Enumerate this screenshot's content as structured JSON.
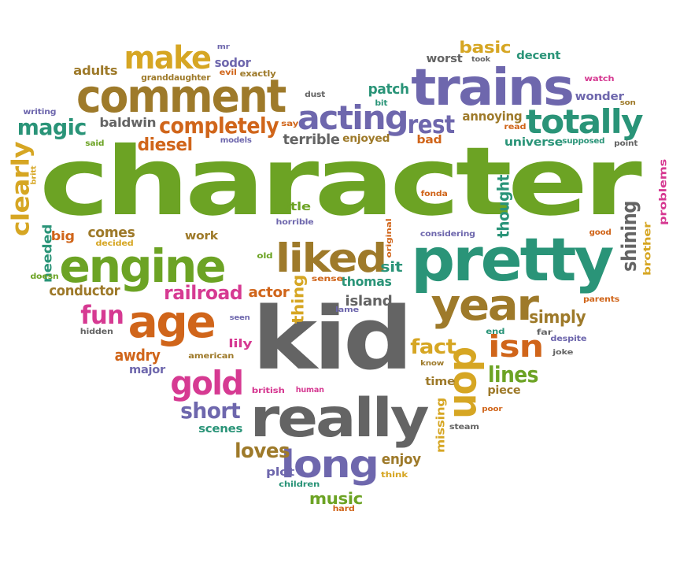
{
  "cloud": {
    "palette": {
      "green": "#6ca324",
      "teal": "#2a9478",
      "purple": "#6e67ad",
      "brown": "#9e7a2a",
      "orange": "#d0651a",
      "magenta": "#d63a92",
      "gold": "#d6a623",
      "gray": "#646464"
    },
    "words": [
      {
        "id": "character",
        "text": "character",
        "color": "green"
      },
      {
        "id": "kid",
        "text": "kid",
        "color": "gray"
      },
      {
        "id": "pretty",
        "text": "pretty",
        "color": "teal"
      },
      {
        "id": "really",
        "text": "really",
        "color": "gray"
      },
      {
        "id": "trains",
        "text": "trains",
        "color": "purple"
      },
      {
        "id": "comment",
        "text": "comment",
        "color": "brown"
      },
      {
        "id": "engine",
        "text": "engine",
        "color": "green"
      },
      {
        "id": "year",
        "text": "year",
        "color": "brown"
      },
      {
        "id": "age",
        "text": "age",
        "color": "orange"
      },
      {
        "id": "liked",
        "text": "liked",
        "color": "brown"
      },
      {
        "id": "acting",
        "text": "acting",
        "color": "purple"
      },
      {
        "id": "totally",
        "text": "totally",
        "color": "teal"
      },
      {
        "id": "make",
        "text": "make",
        "color": "gold"
      },
      {
        "id": "long",
        "text": "long",
        "color": "purple"
      },
      {
        "id": "gold",
        "text": "gold",
        "color": "magenta"
      },
      {
        "id": "don",
        "text": "don",
        "color": "gold"
      },
      {
        "id": "isn",
        "text": "isn",
        "color": "orange"
      },
      {
        "id": "completely",
        "text": "completely",
        "color": "orange"
      },
      {
        "id": "clearly",
        "text": "clearly",
        "color": "gold"
      },
      {
        "id": "magic",
        "text": "magic",
        "color": "teal"
      },
      {
        "id": "rest",
        "text": "rest",
        "color": "purple"
      },
      {
        "id": "fun",
        "text": "fun",
        "color": "magenta"
      },
      {
        "id": "railroad",
        "text": "railroad",
        "color": "magenta"
      },
      {
        "id": "lines",
        "text": "lines",
        "color": "green"
      },
      {
        "id": "short",
        "text": "short",
        "color": "purple"
      },
      {
        "id": "fact",
        "text": "fact",
        "color": "gold"
      },
      {
        "id": "simply",
        "text": "simply",
        "color": "brown"
      },
      {
        "id": "shining",
        "text": "shining",
        "color": "gray"
      },
      {
        "id": "loves",
        "text": "loves",
        "color": "brown"
      },
      {
        "id": "diesel",
        "text": "diesel",
        "color": "orange"
      },
      {
        "id": "thought",
        "text": "thought",
        "color": "teal"
      },
      {
        "id": "basic",
        "text": "basic",
        "color": "gold"
      },
      {
        "id": "patch",
        "text": "patch",
        "color": "teal"
      },
      {
        "id": "terrible",
        "text": "terrible",
        "color": "gray"
      },
      {
        "id": "sodor",
        "text": "sodor",
        "color": "purple"
      },
      {
        "id": "conductor",
        "text": "conductor",
        "color": "brown"
      },
      {
        "id": "needed",
        "text": "needed",
        "color": "teal"
      },
      {
        "id": "awdry",
        "text": "awdry",
        "color": "orange"
      },
      {
        "id": "enjoy",
        "text": "enjoy",
        "color": "brown"
      },
      {
        "id": "music",
        "text": "music",
        "color": "green"
      },
      {
        "id": "thing",
        "text": "thing",
        "color": "gold"
      },
      {
        "id": "island",
        "text": "island",
        "color": "gray"
      },
      {
        "id": "thomas",
        "text": "thomas",
        "color": "teal"
      },
      {
        "id": "sit",
        "text": "sit",
        "color": "teal"
      },
      {
        "id": "actor",
        "text": "actor",
        "color": "orange"
      },
      {
        "id": "comes",
        "text": "comes",
        "color": "brown"
      },
      {
        "id": "big",
        "text": "big",
        "color": "orange"
      },
      {
        "id": "baldwin",
        "text": "baldwin",
        "color": "gray"
      },
      {
        "id": "annoying",
        "text": "annoying",
        "color": "brown"
      },
      {
        "id": "universe",
        "text": "universe",
        "color": "teal"
      },
      {
        "id": "worst",
        "text": "worst",
        "color": "gray"
      },
      {
        "id": "decent",
        "text": "decent",
        "color": "teal"
      },
      {
        "id": "wonder",
        "text": "wonder",
        "color": "purple"
      },
      {
        "id": "adults",
        "text": "adults",
        "color": "brown"
      },
      {
        "id": "scenes",
        "text": "scenes",
        "color": "teal"
      },
      {
        "id": "missing",
        "text": "missing",
        "color": "gold"
      },
      {
        "id": "brother",
        "text": "brother",
        "color": "gold"
      },
      {
        "id": "problems",
        "text": "problems",
        "color": "magenta"
      },
      {
        "id": "piece",
        "text": "piece",
        "color": "brown"
      },
      {
        "id": "time",
        "text": "time",
        "color": "brown"
      },
      {
        "id": "plot",
        "text": "plot",
        "color": "purple"
      },
      {
        "id": "lily",
        "text": "lily",
        "color": "magenta"
      },
      {
        "id": "little",
        "text": "little",
        "color": "green"
      },
      {
        "id": "enjoyed",
        "text": "enjoyed",
        "color": "brown"
      },
      {
        "id": "bad",
        "text": "bad",
        "color": "orange"
      },
      {
        "id": "work",
        "text": "work",
        "color": "brown"
      },
      {
        "id": "major",
        "text": "major",
        "color": "purple"
      },
      {
        "id": "granddaughter",
        "text": "granddaughter",
        "color": "brown"
      },
      {
        "id": "exactly",
        "text": "exactly",
        "color": "brown"
      },
      {
        "id": "evil",
        "text": "evil",
        "color": "orange"
      },
      {
        "id": "mr",
        "text": "mr",
        "color": "purple"
      },
      {
        "id": "writing",
        "text": "writing",
        "color": "purple"
      },
      {
        "id": "said",
        "text": "said",
        "color": "green"
      },
      {
        "id": "britt",
        "text": "britt",
        "color": "gold"
      },
      {
        "id": "models",
        "text": "models",
        "color": "purple"
      },
      {
        "id": "say",
        "text": "say",
        "color": "orange"
      },
      {
        "id": "dust",
        "text": "dust",
        "color": "gray"
      },
      {
        "id": "bit",
        "text": "bit",
        "color": "teal"
      },
      {
        "id": "took",
        "text": "took",
        "color": "gray"
      },
      {
        "id": "watch",
        "text": "watch",
        "color": "magenta"
      },
      {
        "id": "son",
        "text": "son",
        "color": "brown"
      },
      {
        "id": "read",
        "text": "read",
        "color": "orange"
      },
      {
        "id": "supposed",
        "text": "supposed",
        "color": "teal"
      },
      {
        "id": "point",
        "text": "point",
        "color": "gray"
      },
      {
        "id": "fonda",
        "text": "fonda",
        "color": "orange"
      },
      {
        "id": "horrible",
        "text": "horrible",
        "color": "purple"
      },
      {
        "id": "original",
        "text": "original",
        "color": "orange"
      },
      {
        "id": "considering",
        "text": "considering",
        "color": "purple"
      },
      {
        "id": "good",
        "text": "good",
        "color": "orange"
      },
      {
        "id": "decided",
        "text": "decided",
        "color": "gold"
      },
      {
        "id": "doesn",
        "text": "doesn",
        "color": "green"
      },
      {
        "id": "old",
        "text": "old",
        "color": "green"
      },
      {
        "id": "sense",
        "text": "sense",
        "color": "orange"
      },
      {
        "id": "lame",
        "text": "lame",
        "color": "purple"
      },
      {
        "id": "parents",
        "text": "parents",
        "color": "orange"
      },
      {
        "id": "seen",
        "text": "seen",
        "color": "purple"
      },
      {
        "id": "hidden",
        "text": "hidden",
        "color": "gray"
      },
      {
        "id": "end",
        "text": "end",
        "color": "teal"
      },
      {
        "id": "far",
        "text": "far",
        "color": "gray"
      },
      {
        "id": "despite",
        "text": "despite",
        "color": "purple"
      },
      {
        "id": "american",
        "text": "american",
        "color": "brown"
      },
      {
        "id": "joke",
        "text": "joke",
        "color": "gray"
      },
      {
        "id": "know",
        "text": "know",
        "color": "brown"
      },
      {
        "id": "british",
        "text": "british",
        "color": "magenta"
      },
      {
        "id": "human",
        "text": "human",
        "color": "magenta"
      },
      {
        "id": "poor",
        "text": "poor",
        "color": "orange"
      },
      {
        "id": "steam",
        "text": "steam",
        "color": "gray"
      },
      {
        "id": "think",
        "text": "think",
        "color": "gold"
      },
      {
        "id": "children",
        "text": "children",
        "color": "teal"
      },
      {
        "id": "hard",
        "text": "hard",
        "color": "orange"
      }
    ]
  }
}
